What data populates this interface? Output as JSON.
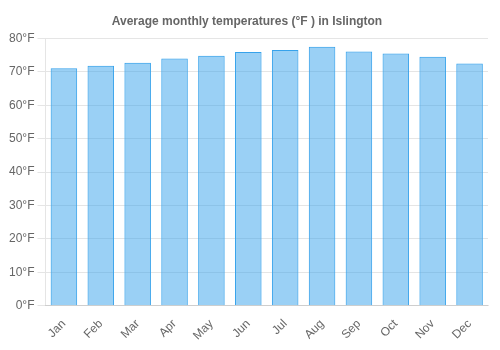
{
  "chart_data": {
    "type": "bar",
    "title": "Average monthly temperatures (°F ) in Islington",
    "categories": [
      "Jan",
      "Feb",
      "Mar",
      "Apr",
      "May",
      "Jun",
      "Jul",
      "Aug",
      "Sep",
      "Oct",
      "Nov",
      "Dec"
    ],
    "values": [
      71.1,
      71.8,
      72.7,
      74.0,
      74.8,
      75.9,
      76.5,
      77.5,
      76.1,
      75.5,
      74.5,
      72.5
    ],
    "ylim": [
      0,
      80
    ],
    "yticks": [
      {
        "value": 0,
        "label": "0°F"
      },
      {
        "value": 10,
        "label": "10°F"
      },
      {
        "value": 20,
        "label": "20°F"
      },
      {
        "value": 30,
        "label": "30°F"
      },
      {
        "value": 40,
        "label": "40°F"
      },
      {
        "value": 50,
        "label": "50°F"
      },
      {
        "value": 60,
        "label": "60°F"
      },
      {
        "value": 70,
        "label": "70°F"
      },
      {
        "value": 80,
        "label": "80°F"
      }
    ],
    "grid": true
  }
}
